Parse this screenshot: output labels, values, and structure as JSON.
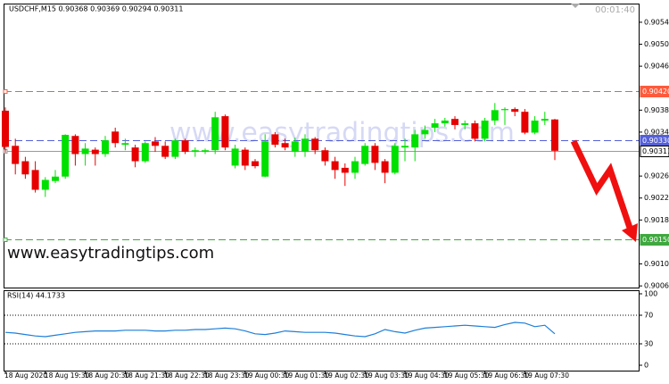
{
  "chart_data": [
    {
      "type": "candlestick",
      "title": "USDCHF,M15  0.90368 0.90369 0.90294 0.90311",
      "timer": "00:01:40",
      "watermark": "www.easytradingtips.com",
      "up_color": "#00e000",
      "down_color": "#e60000",
      "categories": [
        "18 Aug 2020",
        null,
        null,
        null,
        "18 Aug 19:30",
        null,
        null,
        null,
        "18 Aug 20:30",
        null,
        null,
        null,
        "18 Aug 21:30",
        null,
        null,
        null,
        "18 Aug 22:30",
        null,
        null,
        null,
        "18 Aug 23:30",
        null,
        null,
        null,
        "19 Aug 00:30",
        null,
        null,
        null,
        "19 Aug 01:30",
        null,
        null,
        null,
        "19 Aug 02:30",
        null,
        null,
        null,
        "19 Aug 03:30",
        null,
        null,
        null,
        "19 Aug 04:30",
        null,
        null,
        null,
        "19 Aug 05:30",
        null,
        null,
        null,
        "19 Aug 06:30",
        null,
        null,
        null,
        "19 Aug 07:30",
        null,
        null,
        null
      ],
      "open": [
        0.90384,
        0.9032,
        0.90292,
        0.90276,
        0.9024,
        0.90256,
        0.90264,
        0.90338,
        0.90305,
        0.90313,
        0.90305,
        0.90346,
        0.90322,
        0.90317,
        0.90292,
        0.90328,
        0.9032,
        0.903,
        0.9033,
        0.90309,
        0.90309,
        0.90312,
        0.90374,
        0.90284,
        0.90313,
        0.90292,
        0.90264,
        0.90341,
        0.90325,
        0.90309,
        0.90309,
        0.90333,
        0.90312,
        0.90292,
        0.9028,
        0.90271,
        0.90287,
        0.9032,
        0.90292,
        0.90271,
        0.90317,
        0.90317,
        0.90341,
        0.90353,
        0.90361,
        0.90369,
        0.90358,
        0.90361,
        0.90333,
        0.90366,
        0.90385,
        0.90387,
        0.90382,
        0.90344,
        0.90366,
        0.90368
      ],
      "high": [
        0.9039,
        0.90333,
        0.903,
        0.90292,
        0.90263,
        0.90276,
        0.90341,
        0.90341,
        0.90325,
        0.90317,
        0.90338,
        0.90353,
        0.90333,
        0.90322,
        0.90328,
        0.90336,
        0.90328,
        0.90333,
        0.90333,
        0.90317,
        0.90315,
        0.90382,
        0.90377,
        0.90322,
        0.90317,
        0.90296,
        0.90341,
        0.90345,
        0.90333,
        0.90335,
        0.90341,
        0.90336,
        0.90317,
        0.903,
        0.90288,
        0.903,
        0.90325,
        0.90325,
        0.90296,
        0.90325,
        0.90333,
        0.90349,
        0.90357,
        0.90369,
        0.90371,
        0.90374,
        0.90366,
        0.90366,
        0.90371,
        0.90398,
        0.9039,
        0.9039,
        0.90387,
        0.90374,
        0.90382,
        0.90369
      ],
      "low": [
        0.90308,
        0.90268,
        0.9026,
        0.90235,
        0.90227,
        0.90252,
        0.9026,
        0.90284,
        0.90284,
        0.90284,
        0.903,
        0.90317,
        0.90312,
        0.90281,
        0.90289,
        0.90309,
        0.90296,
        0.90296,
        0.90305,
        0.903,
        0.90305,
        0.90305,
        0.90312,
        0.90279,
        0.90276,
        0.90279,
        0.90263,
        0.90317,
        0.90312,
        0.903,
        0.903,
        0.90305,
        0.90284,
        0.9026,
        0.90247,
        0.9026,
        0.90284,
        0.90276,
        0.90252,
        0.90268,
        0.90292,
        0.90292,
        0.90333,
        0.90345,
        0.90355,
        0.9035,
        0.9035,
        0.90328,
        0.90328,
        0.90358,
        0.90358,
        0.90374,
        0.90341,
        0.90341,
        0.90358,
        0.90294
      ],
      "close": [
        0.90318,
        0.90287,
        0.90268,
        0.9024,
        0.90258,
        0.90264,
        0.9034,
        0.90305,
        0.90315,
        0.90305,
        0.9033,
        0.90325,
        0.90325,
        0.90292,
        0.90325,
        0.9032,
        0.903,
        0.9033,
        0.90309,
        0.90312,
        0.90312,
        0.90372,
        0.90317,
        0.90315,
        0.90284,
        0.90283,
        0.90328,
        0.90322,
        0.90317,
        0.90328,
        0.90333,
        0.90312,
        0.90292,
        0.90276,
        0.90271,
        0.90292,
        0.9032,
        0.90289,
        0.90271,
        0.9032,
        0.9032,
        0.90341,
        0.90349,
        0.90361,
        0.90366,
        0.90358,
        0.90361,
        0.90333,
        0.90366,
        0.90385,
        0.90387,
        0.90382,
        0.90344,
        0.90366,
        0.90369,
        0.90311
      ],
      "ylim": [
        0.90062,
        0.90579
      ],
      "yticks": [
        0.90545,
        0.90505,
        0.90465,
        0.90385,
        0.90345,
        0.90265,
        0.90225,
        0.90185,
        0.90105,
        0.90065
      ],
      "levels": [
        {
          "value": 0.9042,
          "label": "0.90420",
          "color": "#ff5a3c",
          "style": "dashed"
        },
        {
          "value": 0.9033,
          "label": "0.90330",
          "color": "#5560d8",
          "style": "dashed"
        },
        {
          "value": 0.90311,
          "color": "#9a9a9a",
          "style": "solid"
        },
        {
          "value": 0.9015,
          "label": "0.90150",
          "color": "#3fa83f",
          "style": "dashed"
        }
      ]
    },
    {
      "type": "line",
      "title": "RSI(14) 44.1733",
      "color": "#1e7fd8",
      "values": [
        46,
        45,
        43,
        41,
        40,
        42,
        44,
        46,
        47,
        48,
        48,
        48,
        49,
        49,
        49,
        48,
        48,
        49,
        49,
        50,
        50,
        51,
        52,
        51,
        48,
        44,
        43,
        45,
        48,
        47,
        46,
        46,
        46,
        45,
        43,
        41,
        40,
        44,
        50,
        47,
        45,
        49,
        52,
        53,
        54,
        55,
        56,
        55,
        54,
        53,
        57,
        60,
        59,
        54,
        56,
        44
      ],
      "ylim": [
        0,
        100
      ],
      "yticks": [
        100,
        70,
        30,
        0
      ],
      "levels": [
        70,
        30
      ]
    }
  ]
}
